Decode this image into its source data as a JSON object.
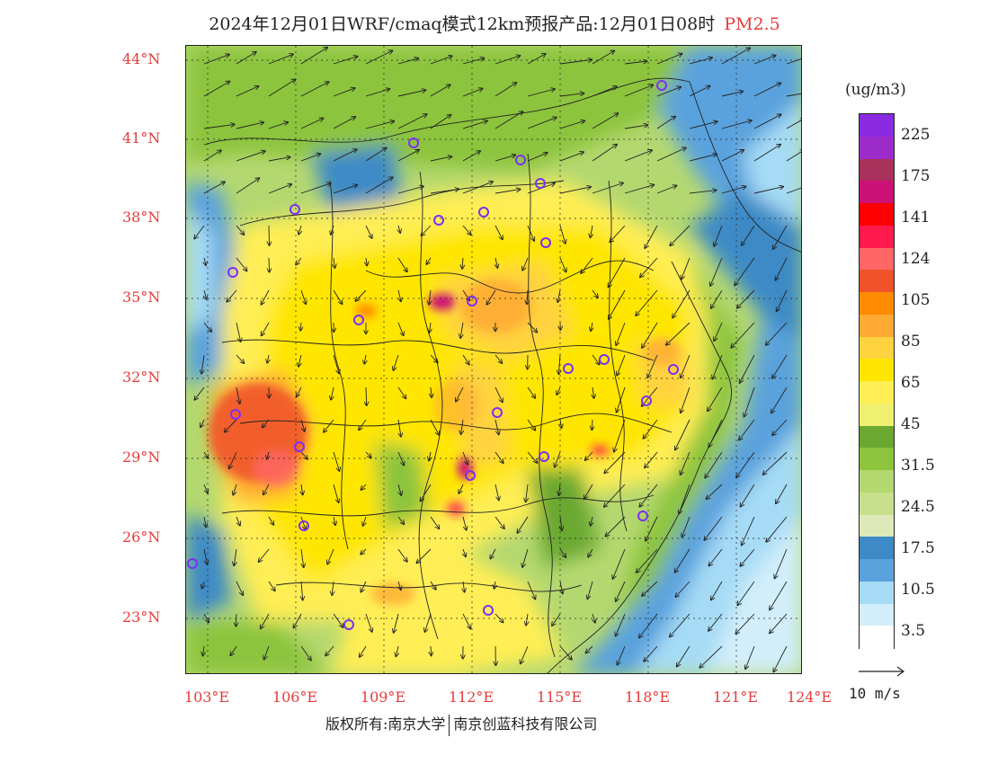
{
  "title": {
    "main": "2024年12月01日WRF/cmaq模式12km预报产品:12月01日08时",
    "pollutant": "PM2.5"
  },
  "latitude_labels": [
    "44°N",
    "41°N",
    "38°N",
    "35°N",
    "32°N",
    "29°N",
    "26°N",
    "23°N"
  ],
  "longitude_labels": [
    "103°E",
    "106°E",
    "109°E",
    "112°E",
    "115°E",
    "118°E",
    "121°E",
    "124°E"
  ],
  "legend": {
    "unit": "(ug/m3)",
    "labels": [
      "225",
      "175",
      "141",
      "124",
      "105",
      "85",
      "65",
      "45",
      "31.5",
      "24.5",
      "17.5",
      "10.5",
      "3.5"
    ],
    "colors": [
      "#8a2be2",
      "#9c2cc9",
      "#a8305a",
      "#cc1177",
      "#ff0000",
      "#ff1a4d",
      "#ff6666",
      "#f0522a",
      "#ff8c00",
      "#ffaa33",
      "#ffd23f",
      "#ffe600",
      "#ffee55",
      "#f0f070",
      "#6aa832",
      "#8cc43c",
      "#b4d870",
      "#c8e08c",
      "#dde9b8",
      "#3d8ac6",
      "#5aa2dd",
      "#a6dbf5",
      "#d2eefa",
      "#ffffff"
    ]
  },
  "wind_reference": {
    "label": "10 m/s"
  },
  "stations": [
    "city-marker"
  ],
  "copyright": {
    "left": "版权所有:南京大学",
    "right": "南京创蓝科技有限公司"
  }
}
